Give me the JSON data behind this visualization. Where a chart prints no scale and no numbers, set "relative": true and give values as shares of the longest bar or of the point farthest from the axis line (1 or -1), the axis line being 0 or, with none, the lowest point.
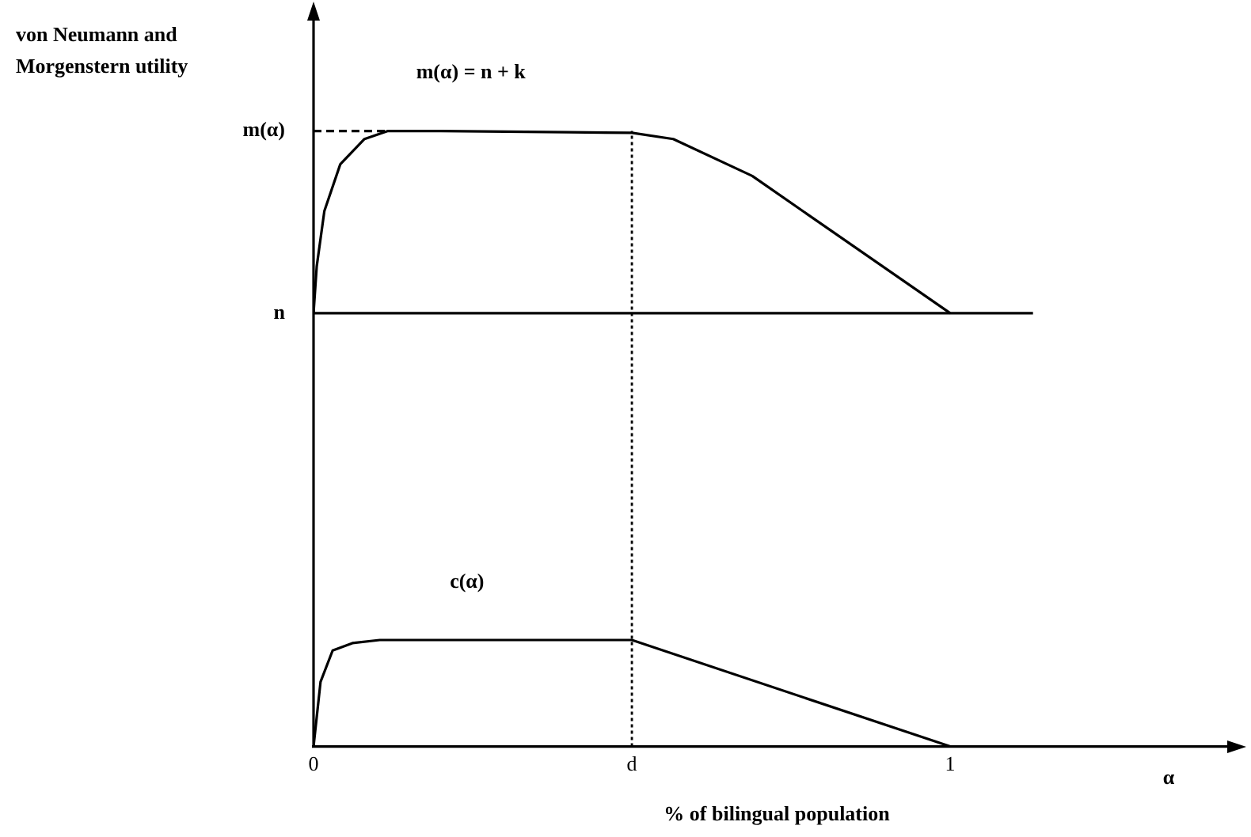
{
  "chart_data": {
    "type": "line",
    "relative": true,
    "xlabel": "% of bilingual population",
    "xlim": [
      0,
      1.455
    ],
    "xticks": [
      0,
      {
        "value": 0.5,
        "label": "d"
      },
      1
    ],
    "marker": "none",
    "series": [
      {
        "name": "m(α) = n + k",
        "color": "#000000",
        "x": [
          0,
          0.005,
          0.017,
          0.042,
          0.08,
          0.117,
          0.2,
          0.3,
          0.4,
          0.5,
          0.565,
          0.689,
          0.813,
          1
        ],
        "values": [
          0.704,
          0.78,
          0.87,
          0.946,
          0.987,
          1,
          1,
          0.999,
          0.998,
          0.997,
          0.987,
          0.927,
          0.838,
          0.704
        ]
      },
      {
        "color": "#000000",
        "x": [
          0,
          1.13
        ],
        "values": [
          0.704,
          0.704
        ]
      },
      {
        "color": "#000000",
        "line_style": "dashed",
        "x": [
          0,
          0.117
        ],
        "values": [
          1,
          1
        ]
      },
      {
        "name": "c(α)",
        "color": "#000000",
        "x": [
          0,
          0.011,
          0.03,
          0.061,
          0.104,
          0.3,
          0.5,
          1
        ],
        "values": [
          0,
          0.105,
          0.156,
          0.168,
          0.173,
          0.173,
          0.173,
          0
        ]
      }
    ],
    "ref_lines": [
      {
        "axis": "x",
        "value": 0.5,
        "line_style": "dotted",
        "color": "#000000"
      }
    ],
    "annotations": [
      "von Neumann and Morgenstern utility",
      {
        "text": "n",
        "x": 0,
        "y": 0.704
      },
      {
        "text": "m(α)",
        "x": 0,
        "y": 1
      },
      "α"
    ]
  }
}
